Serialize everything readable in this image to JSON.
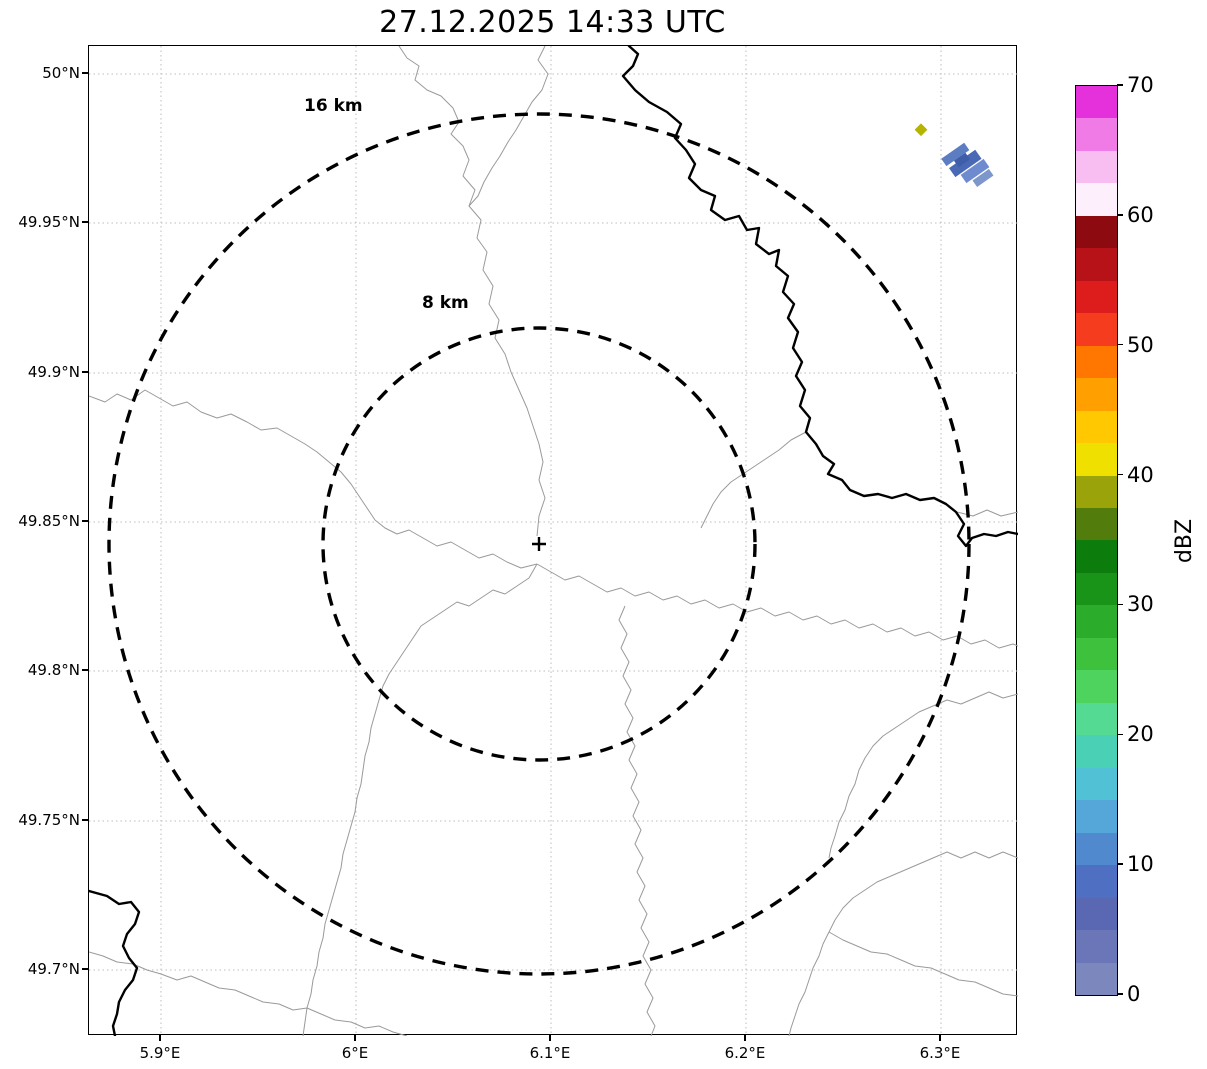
{
  "title": "27.12.2025 14:33 UTC",
  "plot": {
    "x_tick_labels": [
      "5.9°E",
      "6°E",
      "6.1°E",
      "6.2°E",
      "6.3°E"
    ],
    "y_tick_labels": [
      "50°N",
      "49.95°N",
      "49.9°N",
      "49.85°N",
      "49.8°N",
      "49.75°N",
      "49.7°N"
    ],
    "range_ring_labels": {
      "outer": "16 km",
      "inner": "8 km"
    }
  },
  "colorbar": {
    "label": "dBZ",
    "min": 0,
    "max": 70,
    "tick_labels": [
      "0",
      "10",
      "20",
      "30",
      "40",
      "50",
      "60",
      "70"
    ],
    "colors": [
      "#7c87bd",
      "#6b76b8",
      "#5a67b2",
      "#4f6fc2",
      "#5189ce",
      "#55a7da",
      "#51c2d6",
      "#4ad0b4",
      "#54da92",
      "#4ed45e",
      "#3ec23e",
      "#2bad2b",
      "#199419",
      "#0c7d0c",
      "#527c0c",
      "#9aa40a",
      "#f0e000",
      "#ffc800",
      "#ffa000",
      "#ff7600",
      "#f63c1e",
      "#dd1c1c",
      "#b61218",
      "#8d0a10",
      "#fdeffb",
      "#f8bdf1",
      "#f07ae6",
      "#e531dc"
    ]
  },
  "map": {
    "marker_color": "#000000",
    "ring_color": "#000000",
    "boundary_color": "#9a9a9a",
    "river_color": "#000000",
    "echo_colors": {
      "yellow": "#b5b400",
      "blue_light": "#7d96cc",
      "blue_mid": "#5d7dc2",
      "blue": "#4a69b5",
      "blue_dark": "#3f5da8"
    }
  },
  "chart_data": {
    "type": "heatmap",
    "title": "27.12.2025 14:33 UTC",
    "xlabel": "",
    "ylabel": "",
    "x_axis": {
      "tick_values_deg_e": [
        5.9,
        6.0,
        6.1,
        6.2,
        6.3
      ],
      "range_deg_e": [
        5.863,
        6.34
      ]
    },
    "y_axis": {
      "tick_values_deg_n": [
        50.0,
        49.95,
        49.9,
        49.85,
        49.8,
        49.75,
        49.7
      ],
      "range_deg_n": [
        49.678,
        50.009
      ]
    },
    "grid": true,
    "legend": false,
    "colorbar": {
      "label": "dBZ",
      "range": [
        0,
        70
      ],
      "tick_step": 10,
      "band_step": 2.5,
      "position": "right"
    },
    "radar_site": {
      "lon_deg_e": 6.094,
      "lat_deg_n": 49.843,
      "marker": "+"
    },
    "range_rings_km": [
      8,
      16
    ],
    "echoes": [
      {
        "lon_deg_e": 6.29,
        "lat_deg_n": 49.982,
        "dbz": 40
      },
      {
        "lon_deg_e": 6.306,
        "lat_deg_n": 49.975,
        "dbz": 10
      },
      {
        "lon_deg_e": 6.312,
        "lat_deg_n": 49.971,
        "dbz": 8
      },
      {
        "lon_deg_e": 6.317,
        "lat_deg_n": 49.968,
        "dbz": 12
      },
      {
        "lon_deg_e": 6.322,
        "lat_deg_n": 49.965,
        "dbz": 6
      }
    ],
    "map_features": [
      "administrative-boundaries",
      "rivers"
    ]
  }
}
